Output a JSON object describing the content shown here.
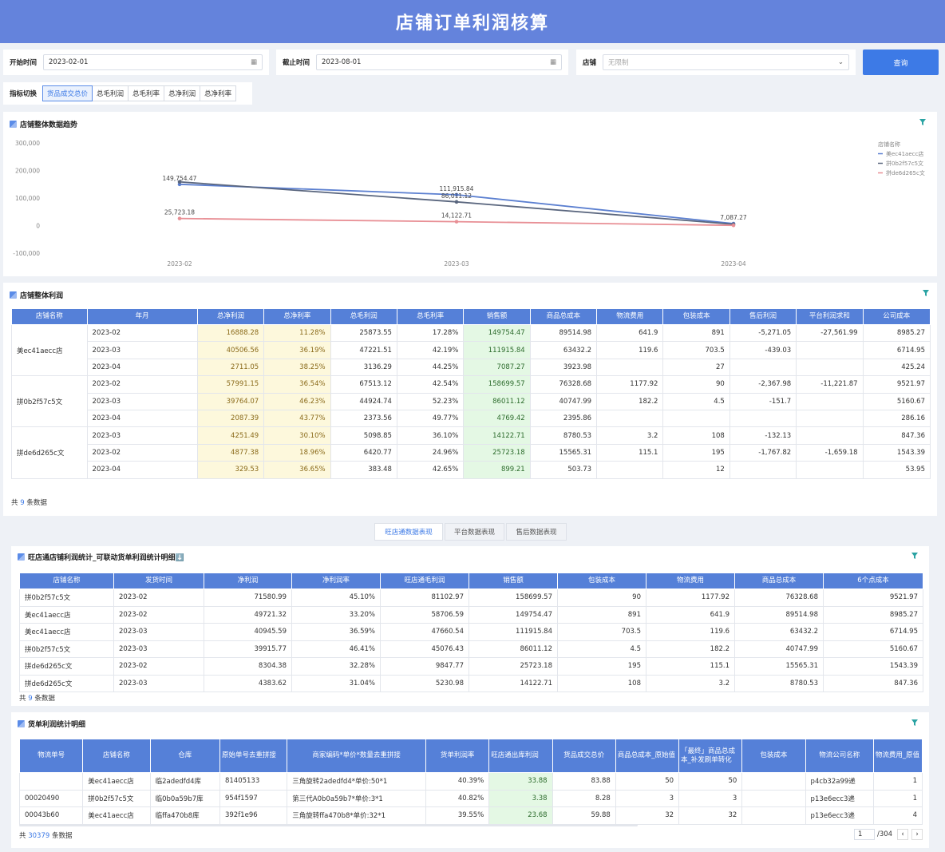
{
  "title": "店铺订单利润核算",
  "filters": {
    "start_label": "开始时间",
    "start_value": "2023-02-01",
    "end_label": "截止时间",
    "end_value": "2023-08-01",
    "shop_label": "店铺",
    "shop_placeholder": "无限制",
    "query": "查询"
  },
  "indicator": {
    "label": "指标切换",
    "tabs": [
      "货品成交总价",
      "总毛利润",
      "总毛利率",
      "总净利润",
      "总净利率"
    ]
  },
  "trend": {
    "title": "店铺整体数据趋势"
  },
  "chart_data": {
    "type": "line",
    "title": "店铺整体数据趋势",
    "categories": [
      "2023-02",
      "2023-03",
      "2023-04"
    ],
    "yticks": [
      "300,000",
      "200,000",
      "100,000",
      "0",
      "-100,000"
    ],
    "ylim": [
      -100000,
      300000
    ],
    "legend_title": "店铺名称",
    "legend_position": "right",
    "series": [
      {
        "name": "美ec41aecc店",
        "color": "#5b7fd0",
        "values": [
          149754.47,
          111915.84,
          7087.27
        ],
        "labels": [
          "149,754.47",
          "111,915.84",
          "7,087.27"
        ]
      },
      {
        "name": "拼0b2f57c5文",
        "color": "#5a667e",
        "values": [
          158699.57,
          86011.12,
          4769.42
        ],
        "labels": [
          "",
          "86,011.12",
          ""
        ]
      },
      {
        "name": "拼de6d265c文",
        "color": "#e88f95",
        "values": [
          25723.18,
          14122.71,
          899.21
        ],
        "labels": [
          "25,723.18",
          "14,122.71",
          ""
        ]
      }
    ]
  },
  "profit": {
    "title": "店铺整体利润",
    "headers": [
      "店铺名称",
      "年月",
      "总净利润",
      "总净利率",
      "总毛利润",
      "总毛利率",
      "销售额",
      "商品总成本",
      "物流费用",
      "包装成本",
      "售后利润",
      "平台利润求和",
      "公司成本"
    ],
    "groups": [
      {
        "shop": "美ec41aecc店",
        "rows": [
          [
            "2023-02",
            "16888.28",
            "11.28%",
            "25873.55",
            "17.28%",
            "149754.47",
            "89514.98",
            "641.9",
            "891",
            "-5,271.05",
            "-27,561.99",
            "8985.27"
          ],
          [
            "2023-03",
            "40506.56",
            "36.19%",
            "47221.51",
            "42.19%",
            "111915.84",
            "63432.2",
            "119.6",
            "703.5",
            "-439.03",
            "",
            "6714.95"
          ],
          [
            "2023-04",
            "2711.05",
            "38.25%",
            "3136.29",
            "44.25%",
            "7087.27",
            "3923.98",
            "",
            "27",
            "",
            "",
            "425.24"
          ]
        ]
      },
      {
        "shop": "拼0b2f57c5文",
        "rows": [
          [
            "2023-02",
            "57991.15",
            "36.54%",
            "67513.12",
            "42.54%",
            "158699.57",
            "76328.68",
            "1177.92",
            "90",
            "-2,367.98",
            "-11,221.87",
            "9521.97"
          ],
          [
            "2023-03",
            "39764.07",
            "46.23%",
            "44924.74",
            "52.23%",
            "86011.12",
            "40747.99",
            "182.2",
            "4.5",
            "-151.7",
            "",
            "5160.67"
          ],
          [
            "2023-04",
            "2087.39",
            "43.77%",
            "2373.56",
            "49.77%",
            "4769.42",
            "2395.86",
            "",
            "",
            "",
            "",
            "286.16"
          ]
        ]
      },
      {
        "shop": "拼de6d265c文",
        "rows": [
          [
            "2023-03",
            "4251.49",
            "30.10%",
            "5098.85",
            "36.10%",
            "14122.71",
            "8780.53",
            "3.2",
            "108",
            "-132.13",
            "",
            "847.36"
          ],
          [
            "2023-02",
            "4877.38",
            "18.96%",
            "6420.77",
            "24.96%",
            "25723.18",
            "15565.31",
            "115.1",
            "195",
            "-1,767.82",
            "-1,659.18",
            "1543.39"
          ],
          [
            "2023-04",
            "329.53",
            "36.65%",
            "383.48",
            "42.65%",
            "899.21",
            "503.73",
            "",
            "12",
            "",
            "",
            "53.95"
          ]
        ]
      }
    ],
    "count_prefix": "共",
    "count": "9",
    "count_suffix": "条数据"
  },
  "tabs": [
    "旺店通数据表现",
    "平台数据表现",
    "售后数据表现"
  ],
  "wdt": {
    "title": "旺店通店铺利润统计_可联动货单利润统计明细⬇️",
    "headers": [
      "店铺名称",
      "发货时间",
      "净利润",
      "净利润率",
      "旺店通毛利润",
      "销售额",
      "包装成本",
      "物流费用",
      "商品总成本",
      "6个点成本"
    ],
    "rows": [
      [
        "拼0b2f57c5文",
        "2023-02",
        "71580.99",
        "45.10%",
        "81102.97",
        "158699.57",
        "90",
        "1177.92",
        "76328.68",
        "9521.97"
      ],
      [
        "美ec41aecc店",
        "2023-02",
        "49721.32",
        "33.20%",
        "58706.59",
        "149754.47",
        "891",
        "641.9",
        "89514.98",
        "8985.27"
      ],
      [
        "美ec41aecc店",
        "2023-03",
        "40945.59",
        "36.59%",
        "47660.54",
        "111915.84",
        "703.5",
        "119.6",
        "63432.2",
        "6714.95"
      ],
      [
        "拼0b2f57c5文",
        "2023-03",
        "39915.77",
        "46.41%",
        "45076.43",
        "86011.12",
        "4.5",
        "182.2",
        "40747.99",
        "5160.67"
      ],
      [
        "拼de6d265c文",
        "2023-02",
        "8304.38",
        "32.28%",
        "9847.77",
        "25723.18",
        "195",
        "115.1",
        "15565.31",
        "1543.39"
      ],
      [
        "拼de6d265c文",
        "2023-03",
        "4383.62",
        "31.04%",
        "5230.98",
        "14122.71",
        "108",
        "3.2",
        "8780.53",
        "847.36"
      ]
    ],
    "count_prefix": "共",
    "count": "9",
    "count_suffix": "条数据"
  },
  "detail": {
    "title": "货单利润统计明细",
    "headers": [
      "物流单号",
      "店铺名称",
      "仓库",
      "原始单号去重拼接",
      "商家编码*单价*数量去重拼接",
      "货单利润率",
      "旺店通出库利润",
      "货品成交总价",
      "商品总成本_原始值",
      "「最终」商品总成本_补发刷单转化",
      "包装成本",
      "物流公司名称",
      "物流费用_原值"
    ],
    "rows": [
      [
        "",
        "美ec41aecc店",
        "临2adedfd4库",
        "81405133",
        "三角旋转2adedfd4*单价:50*1",
        "40.39%",
        "33.88",
        "83.88",
        "50",
        "50",
        "",
        "p4cb32a99递",
        "1"
      ],
      [
        "00020490",
        "拼0b2f57c5文",
        "临0b0a59b7库",
        "954f1597",
        "第三代A0b0a59b7*单价:3*1",
        "40.82%",
        "3.38",
        "8.28",
        "3",
        "3",
        "",
        "p13e6ecc3递",
        "1"
      ],
      [
        "00043b60",
        "美ec41aecc店",
        "临ffa470b8库",
        "392f1e96",
        "三角旋转ffa470b8*单价:32*1",
        "39.55%",
        "23.68",
        "59.88",
        "32",
        "32",
        "",
        "p13e6ecc3递",
        "4"
      ]
    ],
    "count_prefix": "共",
    "count": "30379",
    "count_suffix": "条数据",
    "page": "1",
    "pages": "/304"
  }
}
